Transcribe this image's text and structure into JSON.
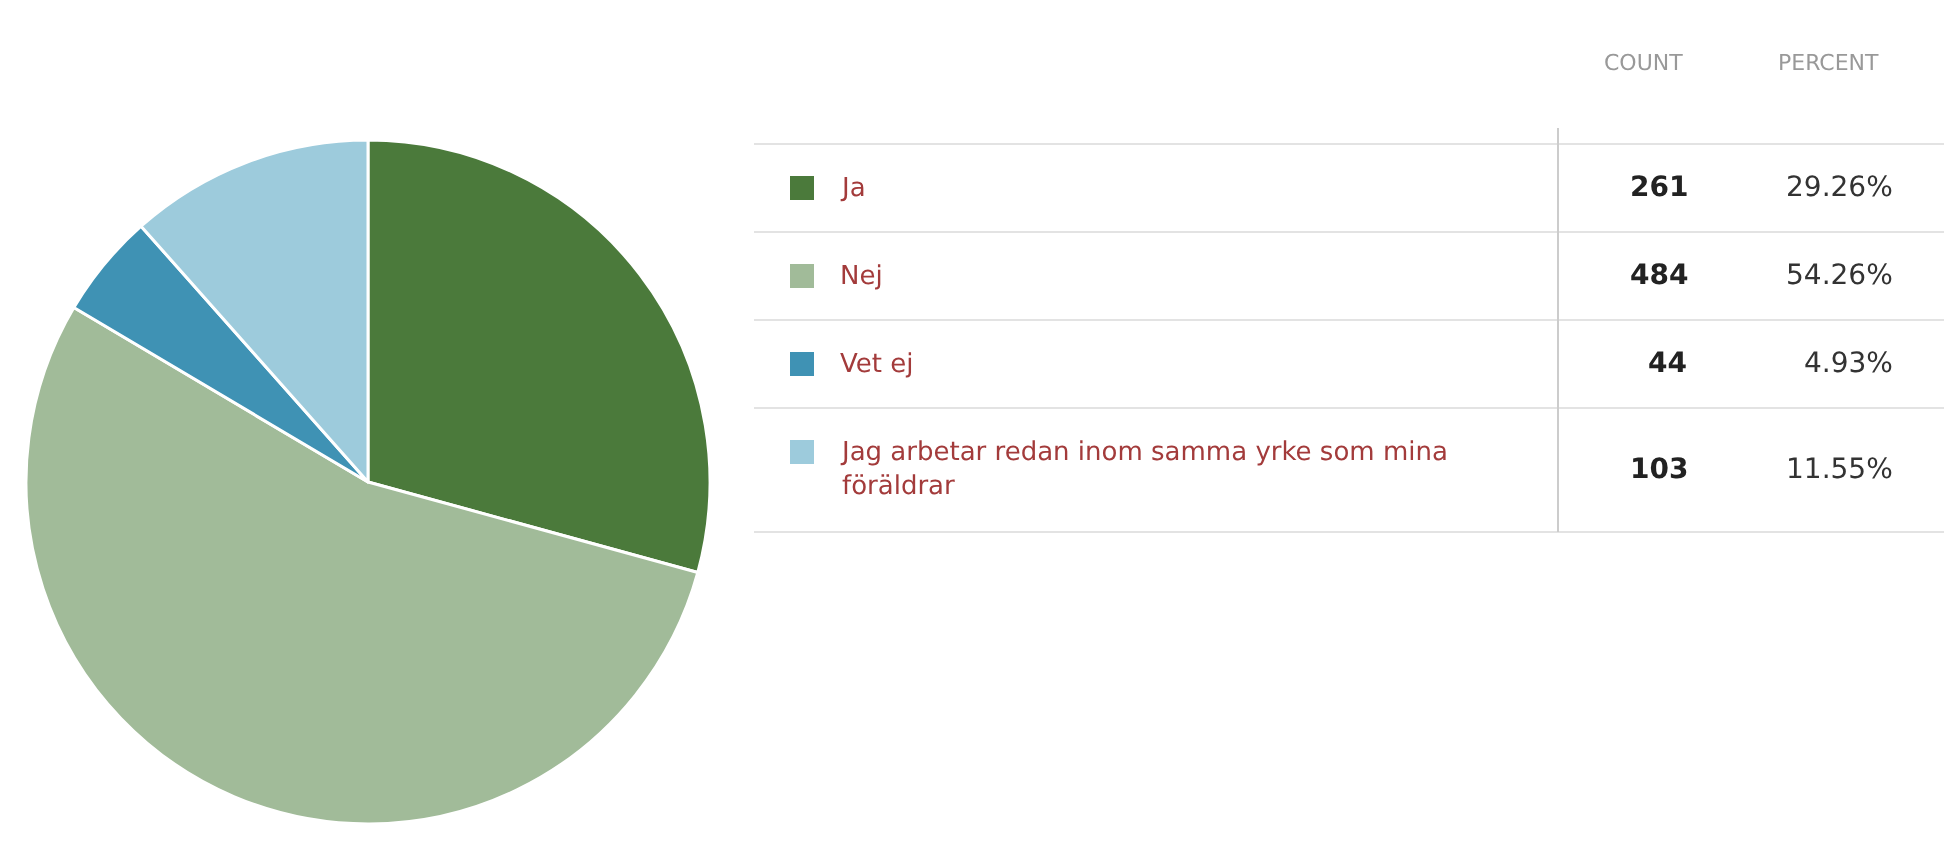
{
  "chart_data": {
    "type": "pie",
    "categories": [
      "Ja",
      "Nej",
      "Vet ej",
      "Jag arbetar redan inom samma yrke som mina föräldrar"
    ],
    "values": [
      29.26,
      54.26,
      4.93,
      11.55
    ],
    "colors": [
      "#4b7a3b",
      "#a1bb99",
      "#3f92b4",
      "#9dcbdc"
    ],
    "value_labels": [
      "29.26%",
      "54.26%",
      "4.93%",
      "11.55%"
    ],
    "annotations": [
      "COUNT",
      "PERCENT",
      "261",
      "484",
      "44",
      "103"
    ],
    "legend": "right"
  }
}
